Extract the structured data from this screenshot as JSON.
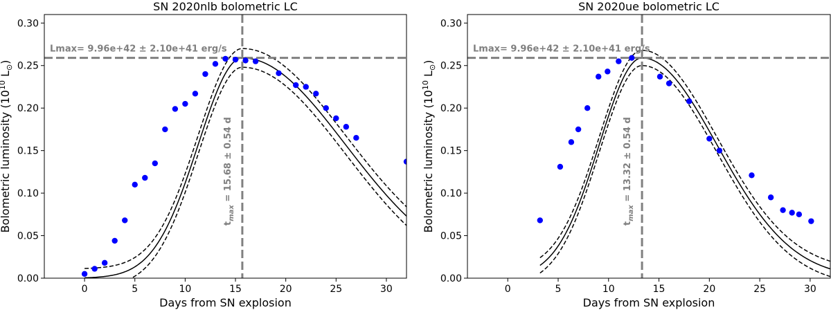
{
  "chart_data": [
    {
      "type": "scatter",
      "title": "SN 2020nlb bolometric LC",
      "xlabel": "Days from SN explosion",
      "ylabel_main": "Bolometric luminosity (10",
      "ylabel_exp": "10",
      "ylabel_unit": " L",
      "ylabel_sun": "⊙",
      "ylabel_close": ")",
      "xlim": [
        -4,
        32
      ],
      "ylim": [
        0.0,
        0.31
      ],
      "xticks": [
        0,
        5,
        10,
        15,
        20,
        25,
        30
      ],
      "yticks": [
        "0.00",
        "0.05",
        "0.10",
        "0.15",
        "0.20",
        "0.25",
        "0.30"
      ],
      "lmax_label": "Lmax= 9.96e+42 ± 2.10e+41 erg/s",
      "lmax_value": 0.259,
      "tmax_label_sym": "t",
      "tmax_label_sub": "max",
      "tmax_label_rest": " = 15.68 ± 0.54 d",
      "tmax_value": 15.68,
      "model": {
        "amp": 0.259,
        "peak": 15.68,
        "rise_width": 6.2,
        "decay_width": 14.5,
        "band": 0.011,
        "x_start": 0
      },
      "points": [
        {
          "x": 0.0,
          "y": 0.005
        },
        {
          "x": 1.0,
          "y": 0.011
        },
        {
          "x": 2.0,
          "y": 0.018
        },
        {
          "x": 3.0,
          "y": 0.044
        },
        {
          "x": 4.0,
          "y": 0.068
        },
        {
          "x": 5.0,
          "y": 0.11
        },
        {
          "x": 6.0,
          "y": 0.118
        },
        {
          "x": 7.0,
          "y": 0.135
        },
        {
          "x": 8.0,
          "y": 0.175
        },
        {
          "x": 9.0,
          "y": 0.199
        },
        {
          "x": 10.0,
          "y": 0.205
        },
        {
          "x": 11.0,
          "y": 0.217
        },
        {
          "x": 12.0,
          "y": 0.24
        },
        {
          "x": 13.0,
          "y": 0.252
        },
        {
          "x": 14.0,
          "y": 0.258
        },
        {
          "x": 15.0,
          "y": 0.257
        },
        {
          "x": 16.0,
          "y": 0.256
        },
        {
          "x": 17.0,
          "y": 0.255
        },
        {
          "x": 19.3,
          "y": 0.241
        },
        {
          "x": 21.0,
          "y": 0.227
        },
        {
          "x": 22.0,
          "y": 0.225
        },
        {
          "x": 23.0,
          "y": 0.217
        },
        {
          "x": 24.0,
          "y": 0.2
        },
        {
          "x": 25.0,
          "y": 0.188
        },
        {
          "x": 26.0,
          "y": 0.178
        },
        {
          "x": 27.0,
          "y": 0.165
        },
        {
          "x": 32.0,
          "y": 0.137
        }
      ]
    },
    {
      "type": "scatter",
      "title": "SN 2020ue bolometric LC",
      "xlabel": "Days from SN explosion",
      "ylabel_main": "Bolometric luminosity (10",
      "ylabel_exp": "10",
      "ylabel_unit": " L",
      "ylabel_sun": "⊙",
      "ylabel_close": ")",
      "xlim": [
        -4,
        32
      ],
      "ylim": [
        0.0,
        0.31
      ],
      "xticks": [
        0,
        5,
        10,
        15,
        20,
        25,
        30
      ],
      "yticks": [
        "0.00",
        "0.05",
        "0.10",
        "0.15",
        "0.20",
        "0.25",
        "0.30"
      ],
      "lmax_label": "Lmax= 9.96e+42 ± 2.10e+41 erg/s",
      "lmax_value": 0.259,
      "tmax_label_sym": "t",
      "tmax_label_sub": "max",
      "tmax_label_rest": " = 13.32 ± 0.54 d",
      "tmax_value": 13.32,
      "model": {
        "amp": 0.259,
        "peak": 13.32,
        "rise_width": 6.0,
        "decay_width": 10.5,
        "band": 0.009,
        "x_start": 3.2
      },
      "points": [
        {
          "x": 3.2,
          "y": 0.068
        },
        {
          "x": 5.2,
          "y": 0.131
        },
        {
          "x": 6.3,
          "y": 0.16
        },
        {
          "x": 7.0,
          "y": 0.175
        },
        {
          "x": 7.9,
          "y": 0.2
        },
        {
          "x": 9.0,
          "y": 0.237
        },
        {
          "x": 9.9,
          "y": 0.243
        },
        {
          "x": 11.0,
          "y": 0.255
        },
        {
          "x": 12.3,
          "y": 0.259
        },
        {
          "x": 15.1,
          "y": 0.237
        },
        {
          "x": 16.0,
          "y": 0.229
        },
        {
          "x": 18.0,
          "y": 0.208
        },
        {
          "x": 20.0,
          "y": 0.164
        },
        {
          "x": 21.0,
          "y": 0.15
        },
        {
          "x": 24.2,
          "y": 0.121
        },
        {
          "x": 26.1,
          "y": 0.095
        },
        {
          "x": 27.3,
          "y": 0.08
        },
        {
          "x": 28.2,
          "y": 0.077
        },
        {
          "x": 28.9,
          "y": 0.075
        },
        {
          "x": 30.1,
          "y": 0.067
        }
      ]
    }
  ]
}
